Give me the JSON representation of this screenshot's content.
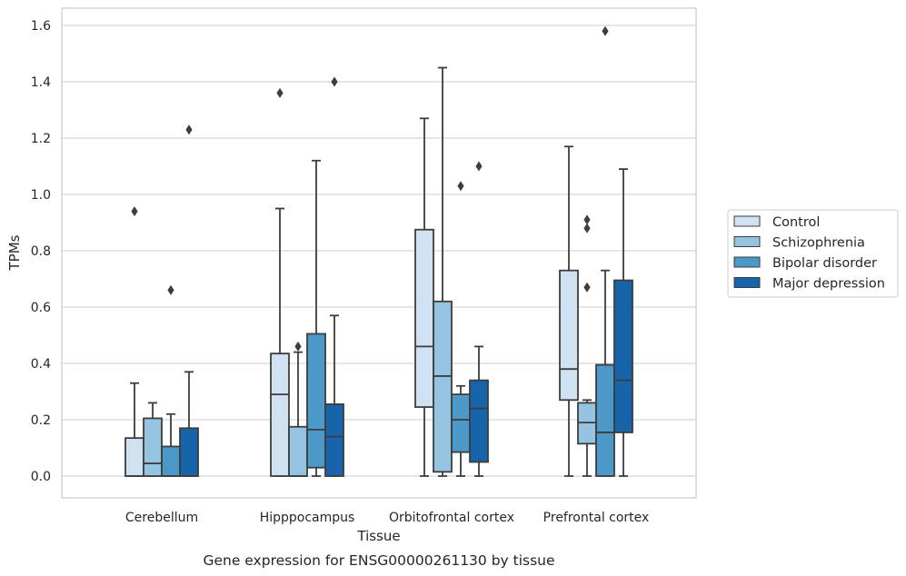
{
  "caption": "Gene expression for ENSG00000261130 by tissue",
  "chart_data": {
    "type": "box",
    "xlabel": "Tissue",
    "ylabel": "TPMs",
    "ylim": [
      -0.08,
      1.66
    ],
    "yticks": [
      0.0,
      0.2,
      0.4,
      0.6,
      0.8,
      1.0,
      1.2,
      1.4,
      1.6
    ],
    "grid": "horizontal",
    "legend_position": "right",
    "categories": [
      "Cerebellum",
      "Hipppocampus",
      "Orbitofrontal cortex",
      "Prefrontal cortex"
    ],
    "series": [
      {
        "name": "Control",
        "color": "#d0e1f2",
        "boxes": [
          {
            "q1": 0.0,
            "median": 0.0,
            "q3": 0.135,
            "whisker_low": 0.0,
            "whisker_high": 0.33,
            "outliers": [
              0.94
            ]
          },
          {
            "q1": 0.0,
            "median": 0.29,
            "q3": 0.435,
            "whisker_low": 0.0,
            "whisker_high": 0.95,
            "outliers": [
              1.36
            ]
          },
          {
            "q1": 0.245,
            "median": 0.46,
            "q3": 0.875,
            "whisker_low": 0.0,
            "whisker_high": 1.27,
            "outliers": []
          },
          {
            "q1": 0.27,
            "median": 0.38,
            "q3": 0.73,
            "whisker_low": 0.0,
            "whisker_high": 1.17,
            "outliers": []
          }
        ]
      },
      {
        "name": "Schizophrenia",
        "color": "#94c4df",
        "boxes": [
          {
            "q1": 0.0,
            "median": 0.045,
            "q3": 0.205,
            "whisker_low": 0.0,
            "whisker_high": 0.26,
            "outliers": []
          },
          {
            "q1": 0.0,
            "median": 0.0,
            "q3": 0.175,
            "whisker_low": 0.0,
            "whisker_high": 0.44,
            "outliers": [
              0.46
            ]
          },
          {
            "q1": 0.015,
            "median": 0.355,
            "q3": 0.62,
            "whisker_low": 0.0,
            "whisker_high": 1.45,
            "outliers": []
          },
          {
            "q1": 0.115,
            "median": 0.19,
            "q3": 0.26,
            "whisker_low": 0.0,
            "whisker_high": 0.27,
            "outliers": [
              0.67,
              0.88,
              0.91
            ]
          }
        ]
      },
      {
        "name": "Bipolar disorder",
        "color": "#4b98c9",
        "boxes": [
          {
            "q1": 0.0,
            "median": 0.0,
            "q3": 0.105,
            "whisker_low": 0.0,
            "whisker_high": 0.22,
            "outliers": [
              0.66
            ]
          },
          {
            "q1": 0.03,
            "median": 0.165,
            "q3": 0.505,
            "whisker_low": 0.0,
            "whisker_high": 1.12,
            "outliers": []
          },
          {
            "q1": 0.085,
            "median": 0.2,
            "q3": 0.29,
            "whisker_low": 0.0,
            "whisker_high": 0.32,
            "outliers": [
              1.03
            ]
          },
          {
            "q1": 0.0,
            "median": 0.155,
            "q3": 0.395,
            "whisker_low": 0.0,
            "whisker_high": 0.73,
            "outliers": [
              1.58
            ]
          }
        ]
      },
      {
        "name": "Major depression",
        "color": "#1764ab",
        "boxes": [
          {
            "q1": 0.0,
            "median": 0.0,
            "q3": 0.17,
            "whisker_low": 0.0,
            "whisker_high": 0.37,
            "outliers": [
              1.23
            ]
          },
          {
            "q1": 0.0,
            "median": 0.14,
            "q3": 0.255,
            "whisker_low": 0.0,
            "whisker_high": 0.57,
            "outliers": [
              1.4
            ]
          },
          {
            "q1": 0.05,
            "median": 0.24,
            "q3": 0.34,
            "whisker_low": 0.0,
            "whisker_high": 0.46,
            "outliers": [
              1.1
            ]
          },
          {
            "q1": 0.155,
            "median": 0.34,
            "q3": 0.695,
            "whisker_low": 0.0,
            "whisker_high": 1.09,
            "outliers": []
          }
        ]
      }
    ]
  }
}
